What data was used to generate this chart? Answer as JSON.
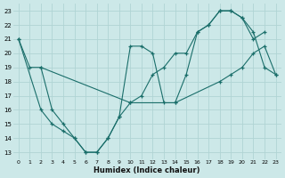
{
  "xlabel": "Humidex (Indice chaleur)",
  "ylabel": "",
  "bg_color": "#cce8e8",
  "grid_color": "#b0d4d4",
  "line_color": "#1a6e6a",
  "xlim": [
    -0.5,
    23.5
  ],
  "ylim": [
    12.5,
    23.5
  ],
  "xticks": [
    0,
    1,
    2,
    3,
    4,
    5,
    6,
    7,
    8,
    9,
    10,
    11,
    12,
    13,
    14,
    15,
    16,
    17,
    18,
    19,
    20,
    21,
    22,
    23
  ],
  "yticks": [
    13,
    14,
    15,
    16,
    17,
    18,
    19,
    20,
    21,
    22,
    23
  ],
  "line1_x": [
    0,
    1,
    2,
    10,
    11,
    12,
    13,
    14,
    15,
    16,
    17,
    18,
    19,
    20,
    21,
    22,
    23
  ],
  "line1_y": [
    21,
    19,
    19,
    16.5,
    17,
    18.5,
    19,
    20,
    20,
    21.5,
    22,
    23,
    23,
    22.5,
    21.5,
    19,
    18.5
  ],
  "line2_x": [
    2,
    3,
    4,
    5,
    6,
    7,
    8,
    9,
    10,
    11,
    12,
    13,
    14,
    15,
    16,
    17,
    18,
    19,
    20,
    21,
    22
  ],
  "line2_y": [
    19,
    16,
    15,
    14,
    13,
    13,
    14,
    15.5,
    20.5,
    20.5,
    20,
    16.5,
    16.5,
    18.5,
    21.5,
    22,
    23,
    23,
    22.5,
    21,
    21.5
  ],
  "line3_x": [
    0,
    2,
    3,
    4,
    5,
    6,
    7,
    8,
    9,
    10,
    14,
    18,
    19,
    20,
    21,
    22,
    23
  ],
  "line3_y": [
    21,
    16,
    15,
    14.5,
    14,
    13,
    13,
    14,
    15.5,
    16.5,
    16.5,
    18,
    18.5,
    19,
    20,
    20.5,
    18.5
  ]
}
